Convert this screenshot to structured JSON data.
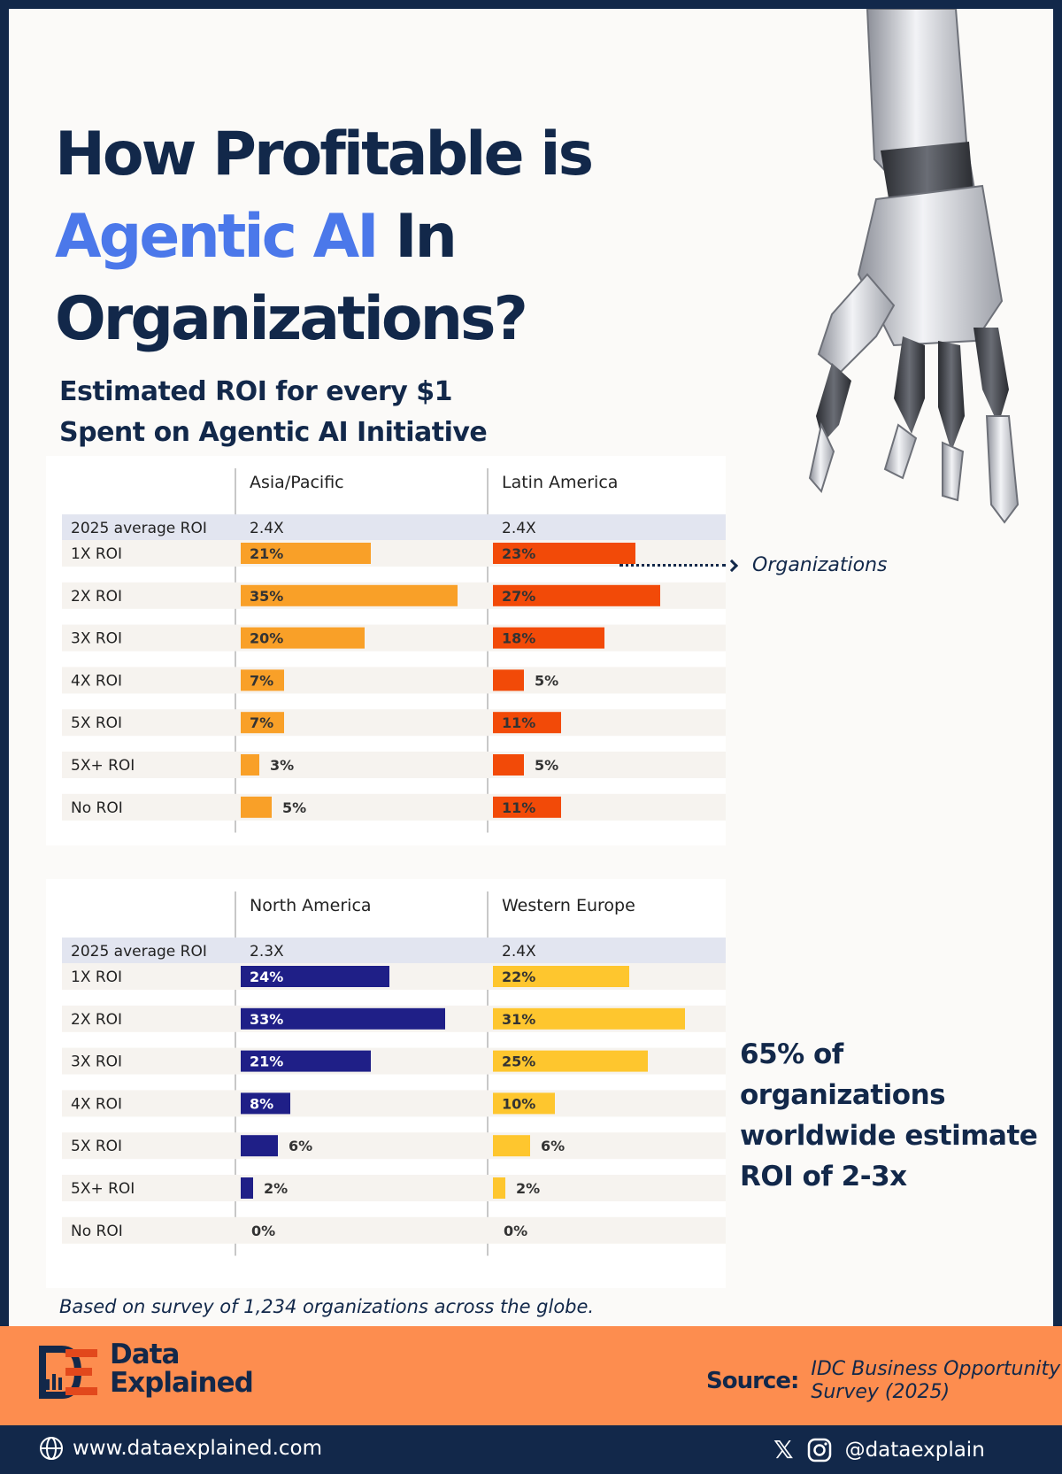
{
  "title": {
    "line1": "How Profitable is",
    "accent": "Agentic AI",
    "line2_rest": " In",
    "line3": "Organizations?"
  },
  "subtitle": {
    "line1": "Estimated ROI for every $1",
    "line2": "Spent on Agentic AI Initiative"
  },
  "annotation": "Organizations",
  "highlight": {
    "line1": "65% of organizations",
    "line2": "worldwide estimate",
    "line3": "ROI of 2-3x"
  },
  "footnote": "Based on survey of 1,234 organizations across the globe.",
  "brand": {
    "line1": "Data",
    "line2": "Explained"
  },
  "source": {
    "label": "Source:",
    "line1": "IDC Business Opportunity",
    "line2": "Survey (2025)"
  },
  "website": "www.dataexplained.com",
  "social": {
    "handle": "@dataexplain"
  },
  "colors": {
    "navy": "#12284a",
    "accent_blue": "#4b78ea",
    "orange_band": "#fd8d4f"
  },
  "chart_data": [
    {
      "type": "bar",
      "row_header": "2025 average ROI",
      "categories": [
        "1X ROI",
        "2X ROI",
        "3X ROI",
        "4X ROI",
        "5X ROI",
        "5X+ ROI",
        "No ROI"
      ],
      "panels": [
        {
          "name": "Asia/Pacific",
          "average": "2.4X",
          "color": "#f9a028",
          "values": [
            21,
            35,
            20,
            7,
            7,
            3,
            5
          ]
        },
        {
          "name": "Latin America",
          "average": "2.4X",
          "color": "#f24a08",
          "values": [
            23,
            27,
            18,
            5,
            11,
            5,
            11
          ]
        }
      ]
    },
    {
      "type": "bar",
      "row_header": "2025 average ROI",
      "categories": [
        "1X ROI",
        "2X ROI",
        "3X ROI",
        "4X ROI",
        "5X ROI",
        "5X+ ROI",
        "No ROI"
      ],
      "panels": [
        {
          "name": "North America",
          "average": "2.3X",
          "color": "#1f1f87",
          "values": [
            24,
            33,
            21,
            8,
            6,
            2,
            0
          ]
        },
        {
          "name": "Western Europe",
          "average": "2.4X",
          "color": "#fec62e",
          "values": [
            22,
            31,
            25,
            10,
            6,
            2,
            0
          ]
        }
      ]
    }
  ]
}
